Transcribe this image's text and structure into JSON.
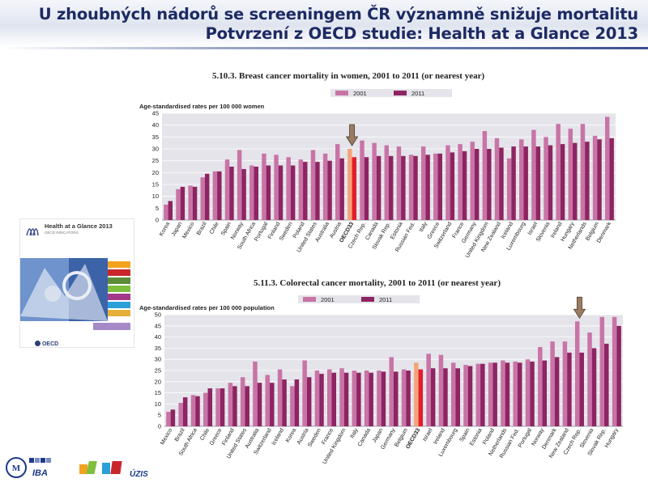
{
  "header": {
    "title_line1": "U zhoubných nádorů se screeningem ČR významně snižuje mortalitu",
    "title_line2": "Potvrzení z OECD studie: Health at a Glance 2013"
  },
  "book": {
    "title": "Health at a Glance 2013",
    "subtitle": "OECD INDICATORS",
    "publisher": "OECD"
  },
  "footer": {
    "logo_iba": "IBA",
    "logo_uzis": "ÚZIS"
  },
  "colors": {
    "series_2001": "#c874a6",
    "series_2011": "#8e2462",
    "oecd_2001": "#f4a37a",
    "oecd_2011": "#e11f2b",
    "plot_bg": "#e4e4ea",
    "arrow": "#9a7c62",
    "title": "#1d2a63"
  },
  "chart_data": [
    {
      "type": "bar",
      "heading": "5.10.3.  Breast cancer mortality in women, 2001 to 2011 (or nearest year)",
      "ylabel": "Age-standardised rates per 100 000 women",
      "ylim": [
        0,
        45
      ],
      "yticks": [
        0,
        5,
        10,
        15,
        20,
        25,
        30,
        35,
        40,
        45
      ],
      "legend_position": "top-center",
      "highlight": "OECD33",
      "arrow_on": "OECD33",
      "categories": [
        "Korea",
        "Japan",
        "Mexico",
        "Brazil",
        "Chile",
        "Spain",
        "Norway",
        "South Africa",
        "Portugal",
        "Finland",
        "Sweden",
        "Poland",
        "United States",
        "Australia",
        "Austria",
        "OECD33",
        "Czech Rep.",
        "Canada",
        "Slovak Rep.",
        "Estonia",
        "Russian Fed.",
        "Italy",
        "Greece",
        "Switzerland",
        "France",
        "Germany",
        "United Kingdom",
        "New Zealand",
        "Iceland",
        "Luxembourg",
        "Israel",
        "Slovenia",
        "Ireland",
        "Hungary",
        "Netherlands",
        "Belgium",
        "Denmark"
      ],
      "series": [
        {
          "name": "2001",
          "values": [
            6.5,
            13,
            14.5,
            18,
            20.5,
            25.5,
            29.5,
            23,
            28,
            27.5,
            26.5,
            25.5,
            29.5,
            28,
            32,
            30,
            33.5,
            32.5,
            31.5,
            31,
            27.5,
            31,
            28,
            31.5,
            32,
            33,
            37.5,
            34.5,
            26,
            34,
            38,
            35,
            40.5,
            38.5,
            40.5,
            35.5,
            43.5
          ]
        },
        {
          "name": "2011",
          "values": [
            8,
            14,
            14,
            19.5,
            20.5,
            22.5,
            21.5,
            22.5,
            23,
            23,
            23,
            24.5,
            24.5,
            25,
            26,
            26.5,
            26.5,
            27,
            27,
            27,
            27,
            27.5,
            28,
            28.5,
            29,
            30,
            30,
            30.5,
            31,
            31,
            31,
            31.5,
            32,
            32.5,
            33,
            34,
            34.5
          ]
        }
      ]
    },
    {
      "type": "bar",
      "heading": "5.11.3.  Colorectal cancer mortality, 2001 to 2011 (or nearest year)",
      "ylabel": "Age-standardised rates per 100 000 population",
      "ylim": [
        0,
        50
      ],
      "yticks": [
        0,
        5,
        10,
        15,
        20,
        25,
        30,
        35,
        40,
        45,
        50
      ],
      "legend_position": "top-center",
      "highlight": "OECD33",
      "arrow_on": "Czech Rep.",
      "categories": [
        "Mexico",
        "Brazil",
        "South Africa",
        "Chile",
        "Greece",
        "Finland",
        "United States",
        "Australia",
        "Switzerland",
        "Iceland",
        "Korea",
        "Austria",
        "Sweden",
        "France",
        "United Kingdom",
        "Italy",
        "Canada",
        "Japan",
        "Germany",
        "Belgium",
        "OECD33",
        "Israel",
        "Ireland",
        "Luxembourg",
        "Spain",
        "Estonia",
        "Poland",
        "Netherlands",
        "Russian Fed.",
        "Portugal",
        "Norway",
        "Denmark",
        "New Zealand",
        "Czech Rep.",
        "Slovenia",
        "Slovak Rep.",
        "Hungary"
      ],
      "series": [
        {
          "name": "2001",
          "values": [
            6.5,
            10.5,
            14,
            15,
            17,
            19.5,
            22,
            29,
            23,
            25.5,
            18,
            29.5,
            25,
            25.5,
            26,
            25,
            25,
            25,
            31,
            25.5,
            28.5,
            32.5,
            32,
            28.5,
            27.5,
            28,
            28.5,
            29.5,
            29,
            30,
            35.5,
            38,
            38,
            47,
            42,
            49,
            49
          ]
        },
        {
          "name": "2011",
          "values": [
            7.5,
            13,
            13.5,
            17,
            17,
            18,
            18,
            19.5,
            19.5,
            21,
            21,
            22,
            23.5,
            24,
            24,
            24,
            24,
            24.5,
            24.5,
            25,
            25.5,
            26,
            26,
            26,
            27,
            28,
            28.5,
            28.5,
            28.5,
            29,
            29.5,
            31,
            33,
            33,
            35,
            37,
            45
          ]
        }
      ]
    }
  ]
}
